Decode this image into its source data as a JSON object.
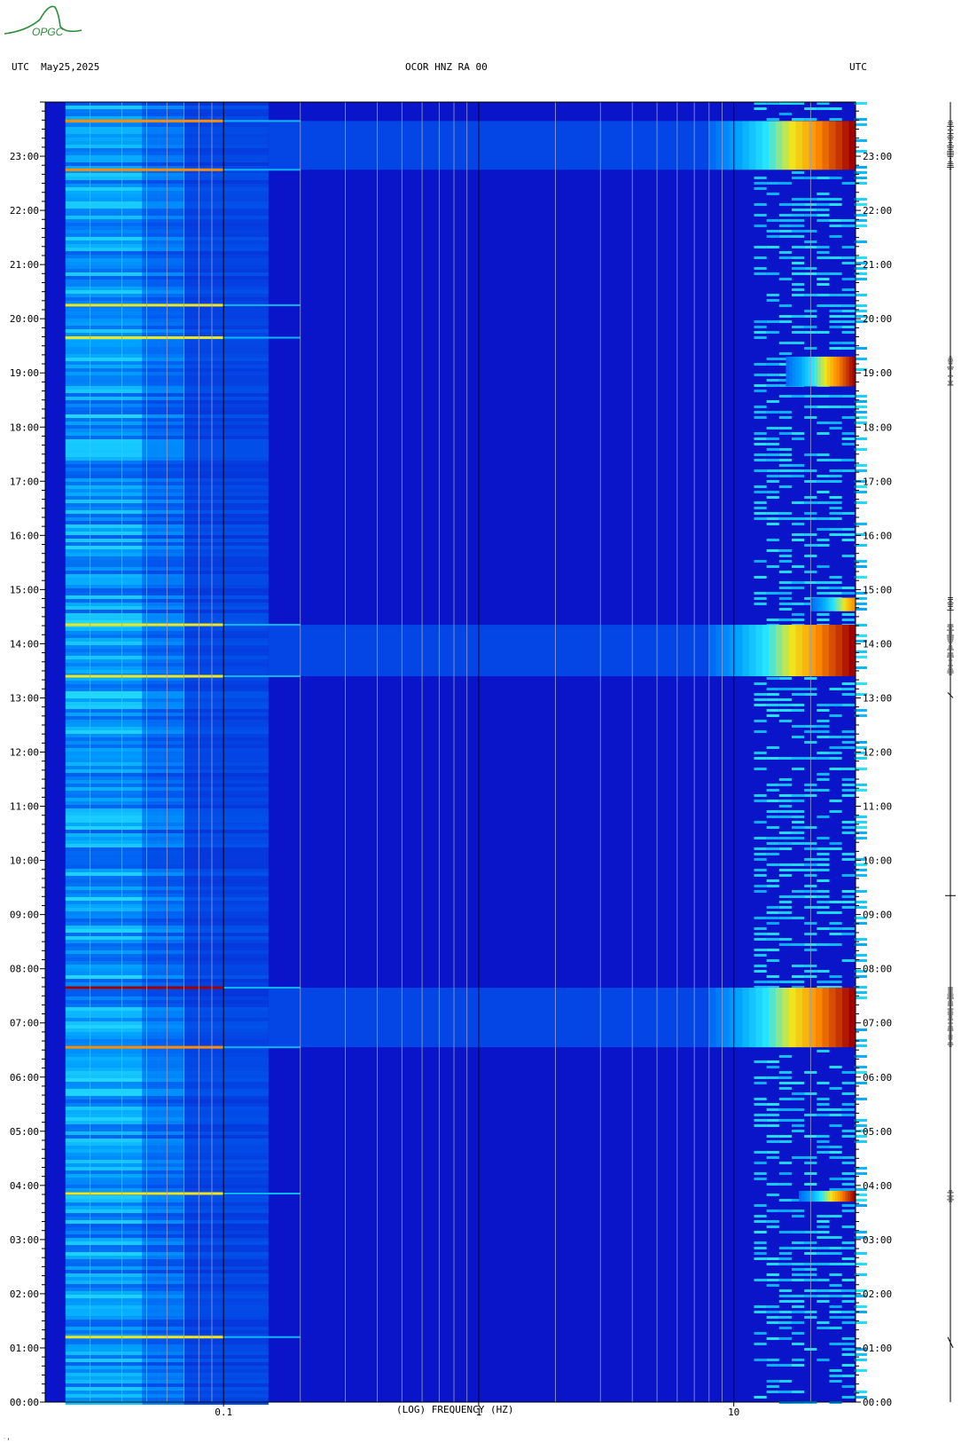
{
  "header": {
    "left": "UTC  May25,2025",
    "center": "OCOR HNZ RA 00",
    "right": "UTC"
  },
  "logo": {
    "text": "OPGC",
    "color": "#2e8b3a"
  },
  "colors": {
    "background_low": "#0a14c8",
    "mid": "#0096ff",
    "cyan": "#28e6ff",
    "yellow": "#f0e61e",
    "orange": "#ff8c00",
    "high": "#a00000"
  },
  "chart_data": {
    "type": "heatmap",
    "title": "OCOR HNZ RA 00",
    "xlabel": "(LOG) FREQUENCY (HZ)",
    "ylabel": "UTC",
    "x_scale": "log",
    "xlim": [
      0.02,
      30
    ],
    "x_ticks": [
      {
        "value": 0.1,
        "label": "0.1"
      },
      {
        "value": 1,
        "label": "1"
      },
      {
        "value": 10,
        "label": "10"
      }
    ],
    "ylim": [
      0,
      24
    ],
    "y_ticks": [
      "00:00",
      "01:00",
      "02:00",
      "03:00",
      "04:00",
      "05:00",
      "06:00",
      "07:00",
      "08:00",
      "09:00",
      "10:00",
      "11:00",
      "12:00",
      "13:00",
      "14:00",
      "15:00",
      "16:00",
      "17:00",
      "18:00",
      "19:00",
      "20:00",
      "21:00",
      "22:00",
      "23:00"
    ],
    "strong_events": [
      {
        "start_h": 6.55,
        "end_h": 7.65,
        "fmin_hz": 8,
        "level": "high"
      },
      {
        "start_h": 13.4,
        "end_h": 14.35,
        "fmin_hz": 8,
        "level": "high"
      },
      {
        "start_h": 22.75,
        "end_h": 23.65,
        "fmin_hz": 8,
        "level": "high"
      },
      {
        "start_h": 3.7,
        "end_h": 3.9,
        "fmin_hz": 18,
        "level": "high"
      },
      {
        "start_h": 18.75,
        "end_h": 19.3,
        "fmin_hz": 16,
        "level": "high"
      },
      {
        "start_h": 14.6,
        "end_h": 14.85,
        "fmin_hz": 20,
        "level": "orange"
      }
    ],
    "low_freq_lines": [
      {
        "hour": 6.55,
        "level": "orange"
      },
      {
        "hour": 7.65,
        "level": "high"
      },
      {
        "hour": 13.4,
        "level": "yellow"
      },
      {
        "hour": 14.35,
        "level": "yellow"
      },
      {
        "hour": 22.75,
        "level": "orange"
      },
      {
        "hour": 23.65,
        "level": "orange"
      },
      {
        "hour": 3.85,
        "level": "yellow"
      },
      {
        "hour": 19.65,
        "level": "yellow"
      },
      {
        "hour": 20.25,
        "level": "yellow"
      },
      {
        "hour": 1.2,
        "level": "yellow"
      }
    ]
  },
  "footer": {
    "corner_mark": "˙‘"
  }
}
